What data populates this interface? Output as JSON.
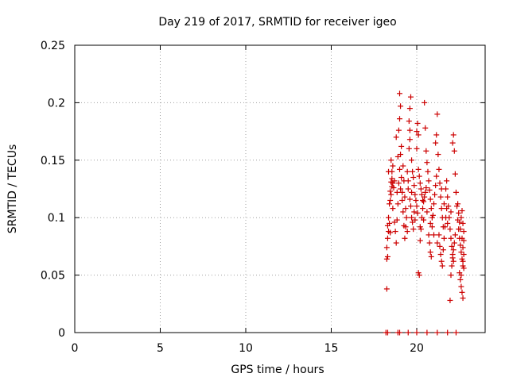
{
  "chart_data": {
    "type": "scatter",
    "title": "Day 219 of 2017, SRMTID for receiver igeo",
    "xlabel": "GPS time / hours",
    "ylabel": "SRMTID / TECUs",
    "xlim": [
      0,
      24
    ],
    "ylim": [
      0,
      0.25
    ],
    "x_ticks": [
      0,
      5,
      10,
      15,
      20
    ],
    "x_tick_labels": [
      "0",
      "5",
      "10",
      "15",
      "20"
    ],
    "y_ticks": [
      0,
      0.05,
      0.1,
      0.15,
      0.2,
      0.25
    ],
    "y_tick_labels": [
      "0",
      "0.05",
      "0.1",
      "0.15",
      "0.2",
      "0.25"
    ],
    "grid": true,
    "marker": "+",
    "color": "#cc0000",
    "series": [
      {
        "name": "SRMTID",
        "points": [
          [
            18.25,
            0.038
          ],
          [
            18.25,
            0.064
          ],
          [
            18.3,
            0.066
          ],
          [
            18.25,
            0.074
          ],
          [
            18.3,
            0.082
          ],
          [
            18.35,
            0.088
          ],
          [
            18.3,
            0.093
          ],
          [
            18.4,
            0.095
          ],
          [
            18.35,
            0.1
          ],
          [
            18.45,
            0.087
          ],
          [
            18.4,
            0.112
          ],
          [
            18.45,
            0.115
          ],
          [
            18.5,
            0.12
          ],
          [
            18.45,
            0.123
          ],
          [
            18.55,
            0.127
          ],
          [
            18.5,
            0.131
          ],
          [
            18.55,
            0.134
          ],
          [
            18.6,
            0.13
          ],
          [
            18.55,
            0.14
          ],
          [
            18.5,
            0.15
          ],
          [
            18.65,
            0.126
          ],
          [
            18.6,
            0.108
          ],
          [
            18.7,
            0.096
          ],
          [
            18.75,
            0.088
          ],
          [
            18.8,
            0.078
          ],
          [
            18.85,
            0.098
          ],
          [
            18.9,
            0.112
          ],
          [
            18.95,
            0.13
          ],
          [
            19.0,
            0.142
          ],
          [
            19.05,
            0.155
          ],
          [
            18.8,
            0.17
          ],
          [
            18.9,
            0.153
          ],
          [
            18.95,
            0.176
          ],
          [
            19.0,
            0.186
          ],
          [
            19.1,
            0.135
          ],
          [
            19.15,
            0.122
          ],
          [
            19.2,
            0.105
          ],
          [
            19.25,
            0.093
          ],
          [
            19.3,
            0.082
          ],
          [
            19.35,
            0.092
          ],
          [
            19.0,
            0.208
          ],
          [
            19.05,
            0.197
          ],
          [
            19.1,
            0.162
          ],
          [
            19.2,
            0.145
          ],
          [
            19.25,
            0.132
          ],
          [
            19.3,
            0.118
          ],
          [
            19.35,
            0.108
          ],
          [
            19.4,
            0.1
          ],
          [
            19.45,
            0.088
          ],
          [
            19.5,
            0.125
          ],
          [
            19.55,
            0.16
          ],
          [
            19.6,
            0.168
          ],
          [
            19.6,
            0.176
          ],
          [
            19.55,
            0.184
          ],
          [
            19.6,
            0.195
          ],
          [
            19.65,
            0.205
          ],
          [
            19.7,
            0.15
          ],
          [
            19.75,
            0.14
          ],
          [
            19.8,
            0.135
          ],
          [
            19.85,
            0.128
          ],
          [
            19.6,
            0.116
          ],
          [
            19.65,
            0.11
          ],
          [
            19.7,
            0.1
          ],
          [
            19.75,
            0.096
          ],
          [
            19.8,
            0.09
          ],
          [
            19.85,
            0.105
          ],
          [
            19.9,
            0.12
          ],
          [
            19.95,
            0.115
          ],
          [
            20.0,
            0.11
          ],
          [
            20.05,
            0.104
          ],
          [
            20.0,
            0.175
          ],
          [
            20.05,
            0.182
          ],
          [
            20.1,
            0.172
          ],
          [
            20.0,
            0.16
          ],
          [
            20.1,
            0.142
          ],
          [
            20.15,
            0.136
          ],
          [
            20.2,
            0.13
          ],
          [
            20.25,
            0.125
          ],
          [
            20.3,
            0.12
          ],
          [
            20.35,
            0.115
          ],
          [
            20.1,
            0.052
          ],
          [
            20.15,
            0.05
          ],
          [
            20.2,
            0.08
          ],
          [
            20.25,
            0.09
          ],
          [
            20.3,
            0.1
          ],
          [
            20.35,
            0.108
          ],
          [
            20.4,
            0.114
          ],
          [
            20.45,
            0.118
          ],
          [
            20.5,
            0.122
          ],
          [
            20.55,
            0.126
          ],
          [
            20.45,
            0.2
          ],
          [
            20.5,
            0.178
          ],
          [
            20.55,
            0.158
          ],
          [
            20.6,
            0.148
          ],
          [
            20.65,
            0.14
          ],
          [
            20.7,
            0.132
          ],
          [
            20.75,
            0.124
          ],
          [
            20.8,
            0.116
          ],
          [
            20.85,
            0.108
          ],
          [
            20.9,
            0.1
          ],
          [
            20.7,
            0.085
          ],
          [
            20.75,
            0.078
          ],
          [
            20.8,
            0.07
          ],
          [
            20.85,
            0.066
          ],
          [
            20.9,
            0.092
          ],
          [
            20.95,
            0.102
          ],
          [
            21.0,
            0.112
          ],
          [
            21.05,
            0.12
          ],
          [
            21.1,
            0.128
          ],
          [
            21.15,
            0.136
          ],
          [
            21.1,
            0.165
          ],
          [
            21.15,
            0.172
          ],
          [
            21.2,
            0.19
          ],
          [
            21.25,
            0.155
          ],
          [
            21.3,
            0.142
          ],
          [
            21.35,
            0.13
          ],
          [
            21.4,
            0.118
          ],
          [
            21.45,
            0.108
          ],
          [
            21.5,
            0.1
          ],
          [
            21.55,
            0.092
          ],
          [
            21.3,
            0.085
          ],
          [
            21.35,
            0.075
          ],
          [
            21.4,
            0.068
          ],
          [
            21.45,
            0.062
          ],
          [
            21.5,
            0.058
          ],
          [
            21.55,
            0.072
          ],
          [
            21.6,
            0.082
          ],
          [
            21.65,
            0.092
          ],
          [
            21.7,
            0.1
          ],
          [
            21.75,
            0.108
          ],
          [
            21.7,
            0.125
          ],
          [
            21.75,
            0.132
          ],
          [
            21.8,
            0.118
          ],
          [
            21.85,
            0.11
          ],
          [
            21.9,
            0.1
          ],
          [
            21.95,
            0.09
          ],
          [
            22.0,
            0.082
          ],
          [
            22.05,
            0.075
          ],
          [
            22.1,
            0.068
          ],
          [
            22.15,
            0.062
          ],
          [
            21.95,
            0.028
          ],
          [
            22.0,
            0.05
          ],
          [
            22.05,
            0.058
          ],
          [
            22.1,
            0.065
          ],
          [
            22.15,
            0.072
          ],
          [
            22.2,
            0.078
          ],
          [
            22.25,
            0.085
          ],
          [
            22.1,
            0.165
          ],
          [
            22.15,
            0.172
          ],
          [
            22.2,
            0.158
          ],
          [
            22.25,
            0.138
          ],
          [
            22.3,
            0.122
          ],
          [
            22.35,
            0.11
          ],
          [
            22.4,
            0.098
          ],
          [
            22.45,
            0.09
          ],
          [
            22.5,
            0.082
          ],
          [
            22.55,
            0.076
          ],
          [
            22.6,
            0.07
          ],
          [
            22.65,
            0.064
          ],
          [
            22.7,
            0.058
          ],
          [
            22.5,
            0.052
          ],
          [
            22.55,
            0.046
          ],
          [
            22.6,
            0.04
          ],
          [
            22.65,
            0.035
          ],
          [
            22.7,
            0.03
          ],
          [
            22.6,
            0.1
          ],
          [
            22.65,
            0.106
          ],
          [
            22.7,
            0.095
          ],
          [
            22.75,
            0.088
          ],
          [
            22.75,
            0.08
          ],
          [
            22.7,
            0.074
          ],
          [
            22.75,
            0.068
          ],
          [
            22.7,
            0.062
          ],
          [
            22.75,
            0.056
          ],
          [
            22.6,
            0.05
          ],
          [
            22.65,
            0.082
          ],
          [
            22.55,
            0.09
          ],
          [
            22.5,
            0.096
          ],
          [
            22.45,
            0.104
          ],
          [
            22.4,
            0.112
          ],
          [
            18.35,
            0.14
          ],
          [
            18.6,
            0.145
          ],
          [
            18.7,
            0.132
          ],
          [
            18.85,
            0.122
          ],
          [
            19.05,
            0.125
          ],
          [
            19.15,
            0.115
          ],
          [
            19.45,
            0.14
          ],
          [
            19.5,
            0.132
          ],
          [
            19.7,
            0.122
          ],
          [
            19.9,
            0.098
          ],
          [
            20.2,
            0.092
          ],
          [
            20.4,
            0.098
          ],
          [
            20.6,
            0.105
          ],
          [
            20.8,
            0.095
          ],
          [
            21.0,
            0.085
          ],
          [
            21.2,
            0.078
          ],
          [
            21.45,
            0.125
          ],
          [
            21.6,
            0.112
          ],
          [
            21.8,
            0.095
          ],
          [
            22.0,
            0.105
          ],
          [
            18.2,
            0.0
          ],
          [
            18.3,
            0.0
          ],
          [
            18.9,
            0.0
          ],
          [
            19.0,
            0.0
          ],
          [
            19.5,
            0.0
          ],
          [
            20.0,
            0.0
          ],
          [
            20.6,
            0.0
          ],
          [
            21.2,
            0.0
          ],
          [
            21.8,
            0.0
          ],
          [
            22.3,
            0.0
          ]
        ]
      }
    ]
  }
}
